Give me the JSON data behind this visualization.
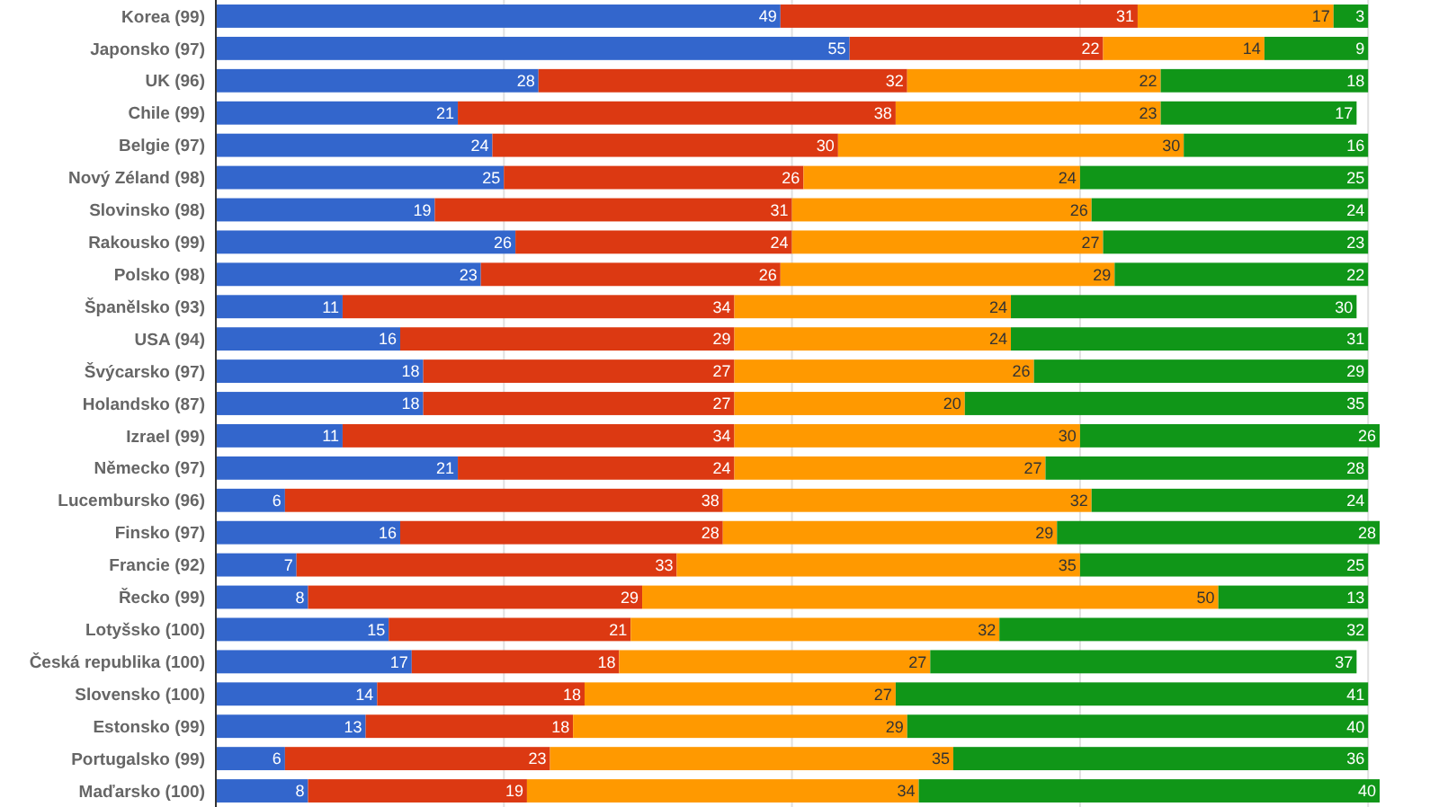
{
  "chart_data": {
    "type": "bar",
    "orientation": "horizontal",
    "stacked": true,
    "data_labels": true,
    "grid": "x",
    "tick_labels": "y",
    "xlim": [
      0,
      101
    ],
    "xticks": [
      {
        "value": 0,
        "label": null
      },
      {
        "value": 25,
        "label": null
      },
      {
        "value": 50,
        "label": null
      },
      {
        "value": 75,
        "label": null
      },
      {
        "value": 100,
        "label": null
      }
    ],
    "categories": [
      "Korea (99)",
      "Japonsko (97)",
      "UK (96)",
      "Chile (99)",
      "Belgie (97)",
      "Nový Zéland (98)",
      "Slovinsko (98)",
      "Rakousko (99)",
      "Polsko (98)",
      "Španělsko (93)",
      "USA (94)",
      "Švýcarsko (97)",
      "Holandsko (87)",
      "Izrael (99)",
      "Německo (97)",
      "Lucembursko (96)",
      "Finsko (97)",
      "Francie (92)",
      "Řecko (99)",
      "Lotyšsko (100)",
      "Česká republika (100)",
      "Slovensko (100)",
      "Estonsko (99)",
      "Portugalsko (99)",
      "Maďarsko (100)"
    ],
    "series": [
      {
        "color": "#3366cc",
        "values": [
          49,
          55,
          28,
          21,
          24,
          25,
          19,
          26,
          23,
          11,
          16,
          18,
          18,
          11,
          21,
          6,
          16,
          7,
          8,
          15,
          17,
          14,
          13,
          6,
          8
        ]
      },
      {
        "color": "#dc3912",
        "values": [
          31,
          22,
          32,
          38,
          30,
          26,
          31,
          24,
          26,
          34,
          29,
          27,
          27,
          34,
          24,
          38,
          28,
          33,
          29,
          21,
          18,
          18,
          18,
          23,
          19
        ]
      },
      {
        "color": "#ff9900",
        "values": [
          17,
          14,
          22,
          23,
          30,
          24,
          26,
          27,
          29,
          24,
          24,
          26,
          20,
          30,
          27,
          32,
          29,
          35,
          50,
          32,
          27,
          27,
          29,
          35,
          34
        ]
      },
      {
        "color": "#109618",
        "values": [
          3,
          9,
          18,
          17,
          16,
          25,
          24,
          23,
          22,
          30,
          31,
          29,
          35,
          26,
          28,
          24,
          28,
          25,
          13,
          32,
          37,
          41,
          40,
          36,
          40
        ]
      }
    ]
  }
}
